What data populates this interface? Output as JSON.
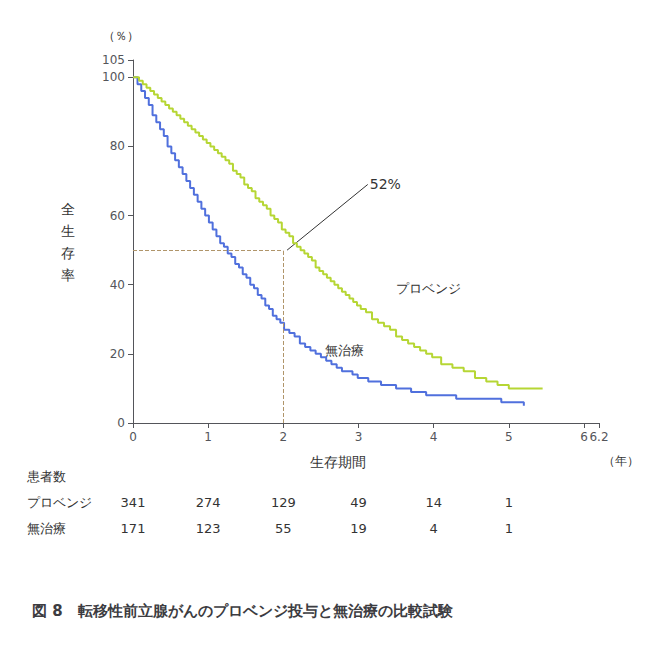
{
  "chart_data": {
    "type": "step",
    "title": "図 8　転移性前立腺がんのプロベンジ投与と無治療の比較試験",
    "xlabel": "生存期間",
    "xunit": "（年）",
    "ylabel": "全生存率",
    "yunit": "（％）",
    "xlim": [
      0,
      6.2
    ],
    "ylim": [
      0,
      105
    ],
    "xticks": [
      0,
      1,
      2,
      3,
      4,
      5,
      6
    ],
    "yticks": [
      0,
      20,
      40,
      60,
      80,
      100
    ],
    "grid": false,
    "series": [
      {
        "name": "無治療",
        "x": [
          0.0,
          0.06,
          0.11,
          0.16,
          0.21,
          0.26,
          0.31,
          0.36,
          0.41,
          0.46,
          0.51,
          0.56,
          0.61,
          0.66,
          0.71,
          0.76,
          0.81,
          0.86,
          0.91,
          0.96,
          1.01,
          1.06,
          1.11,
          1.16,
          1.21,
          1.26,
          1.31,
          1.36,
          1.41,
          1.46,
          1.51,
          1.56,
          1.61,
          1.66,
          1.71,
          1.76,
          1.81,
          1.86,
          1.91,
          1.96,
          2.01,
          2.08,
          2.15,
          2.22,
          2.29,
          2.36,
          2.43,
          2.5,
          2.57,
          2.64,
          2.71,
          2.78,
          2.85,
          2.92,
          2.99,
          3.06,
          3.13,
          3.2,
          3.3,
          3.4,
          3.5,
          3.6,
          3.7,
          3.8,
          3.9,
          4.0,
          4.15,
          4.3,
          4.45,
          4.6,
          4.75,
          4.9,
          5.05,
          5.2
        ],
        "values": [
          100,
          98,
          96,
          94,
          92,
          89,
          87,
          85,
          83,
          80,
          78,
          76,
          74,
          72,
          70,
          68,
          66,
          64,
          62,
          60,
          58,
          56,
          54,
          52,
          51,
          49,
          48,
          46,
          45,
          43,
          42,
          40,
          39,
          37,
          36,
          34,
          33,
          31,
          30,
          29,
          27,
          26,
          25,
          23,
          22,
          21,
          20,
          19,
          18,
          17,
          16,
          15,
          15,
          14,
          13,
          13,
          12,
          12,
          11,
          11,
          10,
          10,
          9,
          9,
          8,
          8,
          8,
          7,
          7,
          7,
          7,
          6,
          6,
          5
        ]
      },
      {
        "name": "プロベンジ",
        "x": [
          0.0,
          0.08,
          0.13,
          0.18,
          0.23,
          0.28,
          0.33,
          0.38,
          0.43,
          0.48,
          0.53,
          0.58,
          0.63,
          0.68,
          0.73,
          0.78,
          0.83,
          0.88,
          0.93,
          0.98,
          1.03,
          1.08,
          1.13,
          1.18,
          1.23,
          1.28,
          1.33,
          1.38,
          1.43,
          1.48,
          1.53,
          1.58,
          1.63,
          1.68,
          1.73,
          1.78,
          1.83,
          1.88,
          1.93,
          1.98,
          2.03,
          2.08,
          2.13,
          2.18,
          2.23,
          2.28,
          2.33,
          2.38,
          2.43,
          2.48,
          2.53,
          2.58,
          2.63,
          2.68,
          2.73,
          2.78,
          2.83,
          2.88,
          2.93,
          2.98,
          3.03,
          3.1,
          3.18,
          3.26,
          3.34,
          3.42,
          3.5,
          3.58,
          3.66,
          3.74,
          3.82,
          3.9,
          3.98,
          4.1,
          4.25,
          4.4,
          4.55,
          4.7,
          4.85,
          5.0,
          5.15,
          5.3,
          5.45
        ],
        "values": [
          100,
          99,
          98,
          97,
          96,
          95,
          94,
          93,
          92,
          91,
          90,
          89,
          88,
          87,
          86,
          85,
          84,
          83,
          82,
          81,
          80,
          79,
          78,
          77,
          76,
          75,
          73,
          72,
          71,
          69,
          68,
          67,
          65,
          64,
          63,
          62,
          60,
          59,
          58,
          56,
          55,
          54,
          52,
          51,
          50,
          49,
          48,
          47,
          45,
          44,
          43,
          42,
          41,
          40,
          39,
          38,
          37,
          36,
          35,
          34,
          33,
          32,
          30,
          29,
          28,
          27,
          25,
          24,
          23,
          22,
          21,
          20,
          19,
          17,
          16,
          15,
          13,
          12,
          11,
          10,
          10,
          10,
          10
        ]
      }
    ],
    "reference_lines": [
      {
        "x": [
          0,
          2.0
        ],
        "y": [
          50,
          50
        ],
        "color": "#b0956a",
        "line_style": "dashed"
      },
      {
        "x": [
          2.0,
          2.0
        ],
        "y": [
          0,
          50
        ],
        "color": "#b0956a",
        "line_style": "dashed"
      }
    ],
    "annotations": [
      {
        "text": "52%",
        "x": 3.15,
        "y": 69,
        "arrow_to": [
          2.05,
          50
        ]
      },
      {
        "text": "プロベンジ",
        "x": 3.5,
        "y": 39
      },
      {
        "text": "無治療",
        "x": 2.55,
        "y": 21
      }
    ],
    "table": {
      "header": "患者数",
      "x": [
        0,
        1,
        2,
        3,
        4,
        5
      ],
      "rows": [
        {
          "label": "プロベンジ",
          "values": [
            341,
            274,
            129,
            49,
            14,
            1
          ]
        },
        {
          "label": "無治療",
          "values": [
            171,
            123,
            55,
            19,
            4,
            1
          ]
        }
      ]
    }
  }
}
